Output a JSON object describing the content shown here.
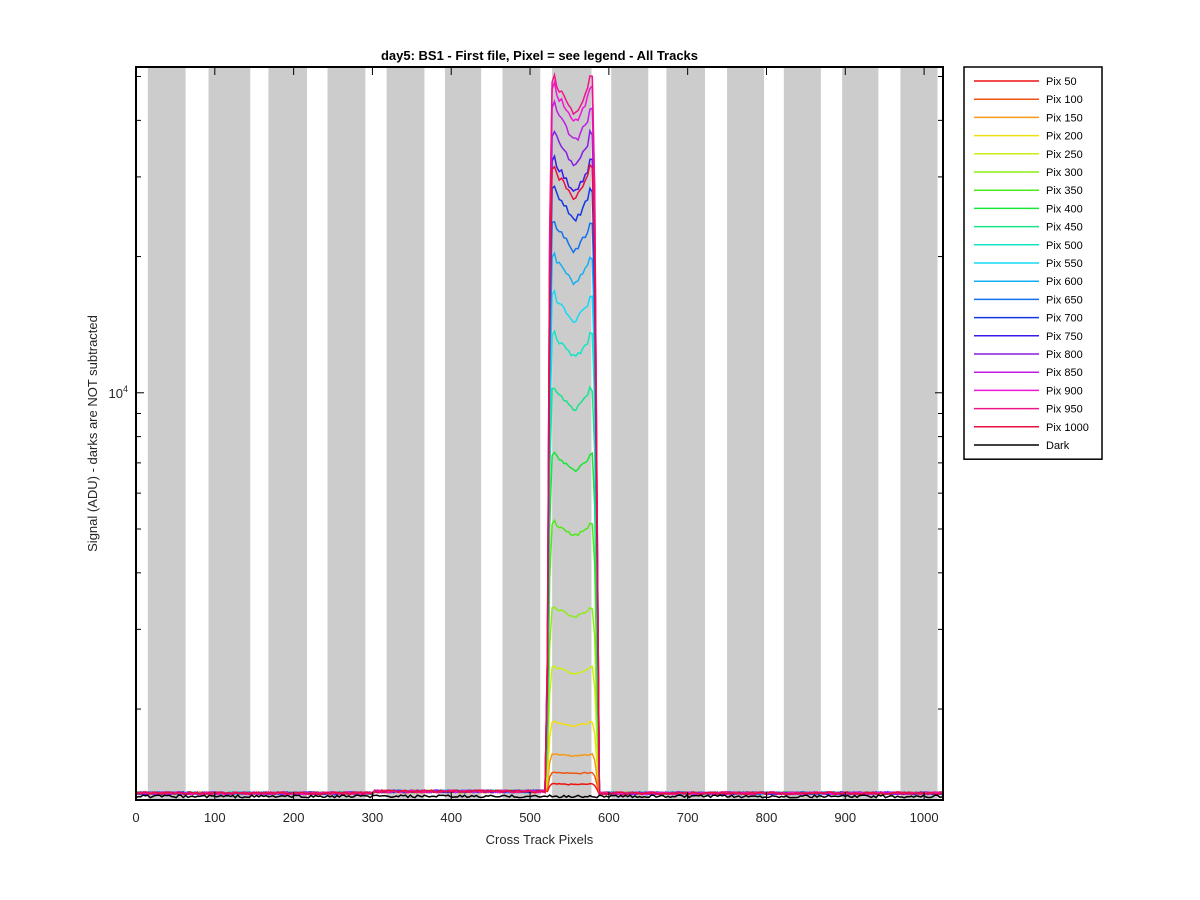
{
  "chart_data": {
    "type": "line",
    "title": "day5: BS1 - First file, Pixel = see legend - All Tracks",
    "xlabel": "Cross Track Pixels",
    "ylabel": "Signal (ADU) - darks are NOT subtracted",
    "xlim": [
      0,
      1024
    ],
    "ylim_log10": [
      3.1,
      4.72
    ],
    "yscale": "log",
    "x_ticks": [
      0,
      100,
      200,
      300,
      400,
      500,
      600,
      700,
      800,
      900,
      1000
    ],
    "x_tick_labels": [
      "0",
      "100",
      "200",
      "300",
      "400",
      "500",
      "600",
      "700",
      "800",
      "900",
      "1000"
    ],
    "y_tick_label_base": "10",
    "y_tick_label_exp": "4",
    "grid": false,
    "legend_position": "outside-right",
    "track_bands": [
      [
        15,
        63
      ],
      [
        92,
        145
      ],
      [
        168,
        217
      ],
      [
        243,
        291
      ],
      [
        318,
        366
      ],
      [
        392,
        438
      ],
      [
        465,
        513
      ],
      [
        528,
        578
      ],
      [
        603,
        650
      ],
      [
        673,
        722
      ],
      [
        750,
        797
      ],
      [
        822,
        869
      ],
      [
        896,
        942
      ],
      [
        970,
        1017
      ]
    ],
    "series": [
      {
        "name": "Pix 50",
        "color": "#ee1111",
        "plateau": 3.135
      },
      {
        "name": "Pix 100",
        "color": "#ee5511",
        "plateau": 3.16
      },
      {
        "name": "Pix 150",
        "color": "#f59a16",
        "plateau": 3.2
      },
      {
        "name": "Pix 200",
        "color": "#f2de0f",
        "plateau": 3.27
      },
      {
        "name": "Pix 250",
        "color": "#c8ef10",
        "plateau": 3.39
      },
      {
        "name": "Pix 300",
        "color": "#8ced14",
        "plateau": 3.52
      },
      {
        "name": "Pix 350",
        "color": "#4ee919",
        "plateau": 3.705
      },
      {
        "name": "Pix 400",
        "color": "#17e633",
        "plateau": 3.855
      },
      {
        "name": "Pix 450",
        "color": "#14e48c",
        "plateau": 3.995
      },
      {
        "name": "Pix 500",
        "color": "#13e5c4",
        "plateau": 4.115
      },
      {
        "name": "Pix 550",
        "color": "#16d9f4",
        "plateau": 4.2
      },
      {
        "name": "Pix 600",
        "color": "#16aef2",
        "plateau": 4.285
      },
      {
        "name": "Pix 650",
        "color": "#1372e8",
        "plateau": 4.36
      },
      {
        "name": "Pix 700",
        "color": "#1238e6",
        "plateau": 4.43
      },
      {
        "name": "Pix 750",
        "color": "#3a1ae8",
        "plateau": 4.495
      },
      {
        "name": "Pix 800",
        "color": "#8a1ce6",
        "plateau": 4.555
      },
      {
        "name": "Pix 850",
        "color": "#c11ce6",
        "plateau": 4.61
      },
      {
        "name": "Pix 900",
        "color": "#f014d8",
        "plateau": 4.655
      },
      {
        "name": "Pix 950",
        "color": "#f0148a",
        "plateau": 4.675
      },
      {
        "name": "Pix 1000",
        "color": "#e6103e",
        "plateau": 4.48
      },
      {
        "name": "Dark",
        "color": "#000000",
        "plateau": 3.11
      }
    ]
  }
}
